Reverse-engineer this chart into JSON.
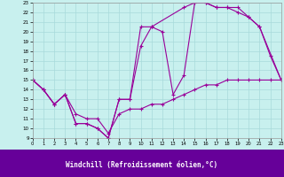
{
  "xlabel": "Windchill (Refroidissement éolien,°C)",
  "xlim": [
    0,
    23
  ],
  "ylim": [
    9,
    23
  ],
  "xticks": [
    0,
    1,
    2,
    3,
    4,
    5,
    6,
    7,
    8,
    9,
    10,
    11,
    12,
    13,
    14,
    15,
    16,
    17,
    18,
    19,
    20,
    21,
    22,
    23
  ],
  "yticks": [
    9,
    10,
    11,
    12,
    13,
    14,
    15,
    16,
    17,
    18,
    19,
    20,
    21,
    22,
    23
  ],
  "bg_color": "#c8f0ee",
  "line_color": "#990099",
  "grid_color": "#a8dada",
  "footer_color": "#660099",
  "line1_x": [
    0,
    1,
    2,
    3,
    4,
    5,
    6,
    7,
    8,
    9,
    10,
    11,
    12,
    13,
    14,
    15,
    16,
    17,
    18,
    19,
    20,
    21,
    22,
    23
  ],
  "line1_y": [
    15,
    14,
    12.5,
    13.5,
    10.5,
    10.5,
    10,
    9,
    13,
    13,
    18.5,
    20.5,
    20,
    13.5,
    15.5,
    23,
    23,
    22.5,
    22.5,
    22,
    21.5,
    20.5,
    17.5,
    15
  ],
  "line2_x": [
    0,
    1,
    2,
    3,
    4,
    5,
    6,
    7,
    8,
    9,
    10,
    11,
    14,
    15,
    16,
    17,
    18,
    19,
    20,
    21,
    23
  ],
  "line2_y": [
    15,
    14,
    12.5,
    13.5,
    10.5,
    10.5,
    10,
    9,
    13,
    13,
    20.5,
    20.5,
    22.5,
    23,
    23,
    22.5,
    22.5,
    22.5,
    21.5,
    20.5,
    15
  ],
  "line3_x": [
    0,
    1,
    2,
    3,
    4,
    5,
    6,
    7,
    8,
    9,
    10,
    11,
    12,
    13,
    14,
    15,
    16,
    17,
    18,
    19,
    20,
    21,
    22,
    23
  ],
  "line3_y": [
    15,
    14,
    12.5,
    13.5,
    11.5,
    11,
    11,
    9.5,
    11.5,
    12,
    12,
    12.5,
    12.5,
    13,
    13.5,
    14,
    14.5,
    14.5,
    15,
    15,
    15,
    15,
    15,
    15
  ]
}
